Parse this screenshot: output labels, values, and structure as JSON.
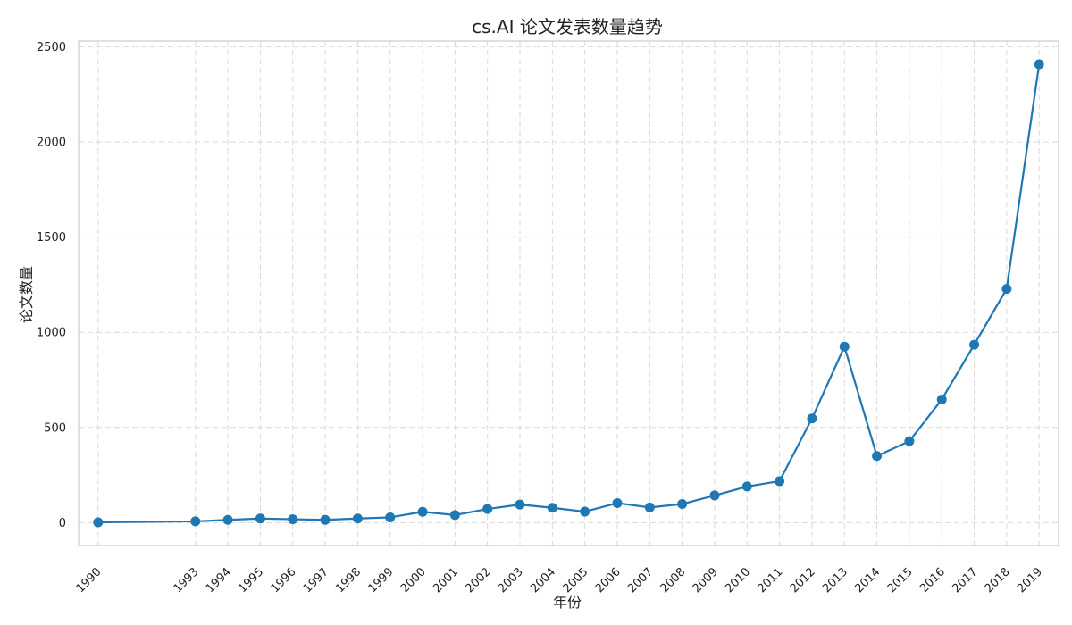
{
  "chart_data": {
    "type": "line",
    "title": "cs.AI 论文发表数量趋势",
    "xlabel": "年份",
    "ylabel": "论文数量",
    "x": [
      1990,
      1993,
      1994,
      1995,
      1996,
      1997,
      1998,
      1999,
      2000,
      2001,
      2002,
      2003,
      2004,
      2005,
      2006,
      2007,
      2008,
      2009,
      2010,
      2011,
      2012,
      2013,
      2014,
      2015,
      2016,
      2017,
      2018,
      2019
    ],
    "x_tick_labels": [
      "1990",
      "1993",
      "1994",
      "1995",
      "1996",
      "1997",
      "1998",
      "1999",
      "2000",
      "2001",
      "2002",
      "2003",
      "2004",
      "2005",
      "2006",
      "2007",
      "2008",
      "2009",
      "2010",
      "2011",
      "2012",
      "2013",
      "2014",
      "2015",
      "2016",
      "2017",
      "2018",
      "2019"
    ],
    "series": [
      {
        "values": [
          2,
          7,
          15,
          22,
          18,
          15,
          22,
          28,
          57,
          40,
          72,
          95,
          78,
          58,
          103,
          80,
          98,
          143,
          190,
          218,
          547,
          925,
          350,
          428,
          647,
          935,
          1228,
          2408
        ],
        "color": "#1f77b4"
      }
    ],
    "yticks": [
      0,
      500,
      1000,
      1500,
      2000,
      2500
    ],
    "y_tick_labels": [
      "0",
      "500",
      "1000",
      "1500",
      "2000",
      "2500"
    ],
    "ylim": [
      -120,
      2530
    ],
    "xlim": [
      1989.4,
      2019.6
    ],
    "grid": true,
    "legend": "none"
  }
}
